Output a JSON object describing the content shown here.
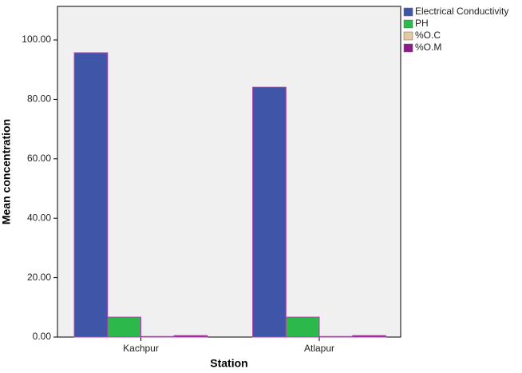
{
  "chart_data": {
    "type": "bar",
    "x_label": "Station",
    "y_label": "Mean concentration",
    "categories": [
      "Kachpur",
      "Atlapur"
    ],
    "series": [
      {
        "name": "Electrical Conductivity",
        "color": "#3f56a8",
        "values": [
          95.7,
          84.1
        ]
      },
      {
        "name": "PH",
        "color": "#2db84c",
        "values": [
          6.7,
          6.7
        ]
      },
      {
        "name": "%O.C",
        "color": "#e6c9a0",
        "values": [
          0.2,
          0.2
        ]
      },
      {
        "name": "%O.M",
        "color": "#8b1c8b",
        "values": [
          0.5,
          0.5
        ]
      }
    ],
    "ylim": [
      0,
      111.3
    ],
    "yticks": [
      {
        "value": 0,
        "label": "0.00"
      },
      {
        "value": 20,
        "label": "20.00"
      },
      {
        "value": 40,
        "label": "40.00"
      },
      {
        "value": 60,
        "label": "60.00"
      },
      {
        "value": 80,
        "label": "80.00"
      },
      {
        "value": 100,
        "label": "100.00"
      }
    ],
    "bar_edge_color": "#b040b0"
  }
}
